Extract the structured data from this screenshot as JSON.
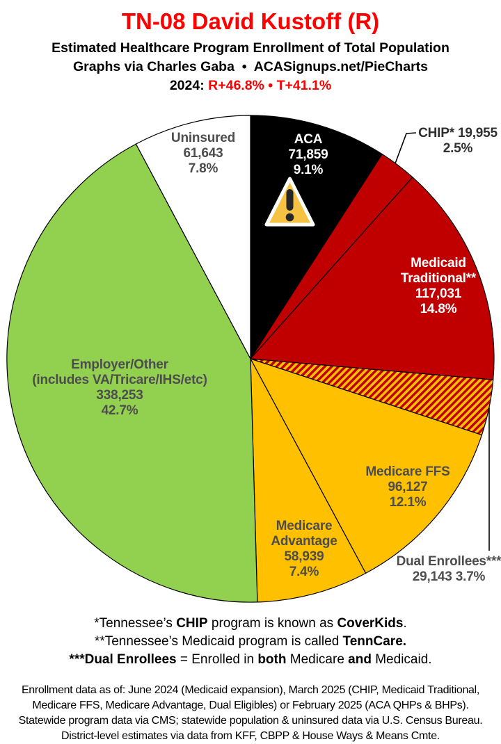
{
  "header": {
    "title": "TN-08 David Kustoff (R)",
    "subtitle": "Estimated Healthcare Program Enrollment of Total Population",
    "credit": "Graphs via Charles Gaba  •  ACASignups.net/PieCharts",
    "lean": {
      "year_label": "2024: ",
      "r": "R+46.8%",
      "sep": " • ",
      "t": "T+41.1%"
    },
    "accent_color": "#fe0000"
  },
  "chart_data": {
    "type": "pie",
    "title": "TN-08 David Kustoff (R) — Estimated Healthcare Program Enrollment of Total Population",
    "units": "people",
    "legend_position": "none",
    "start_angle_deg": 0,
    "direction": "clockwise",
    "hatch": {
      "base": "#ffc000",
      "stripe": "#c00000"
    },
    "slices": [
      {
        "id": "aca",
        "name": "ACA",
        "value": 71859,
        "pct": 9.1,
        "color": "#000000",
        "label_color": "#ffffff",
        "label_lines": [
          "ACA",
          "71,859",
          "9.1%"
        ]
      },
      {
        "id": "chip",
        "name": "CHIP*",
        "value": 19955,
        "pct": 2.5,
        "color": "#c00000",
        "label_color": "#303030",
        "label_outside": true,
        "label_lines": [
          "CHIP* 19,955",
          "2.5%"
        ]
      },
      {
        "id": "medicaid-traditional",
        "name": "Medicaid Traditional**",
        "value": 117031,
        "pct": 14.8,
        "color": "#c00000",
        "label_color": "#ffffff",
        "label_lines": [
          "Medicaid",
          "Traditional**",
          "117,031",
          "14.8%"
        ]
      },
      {
        "id": "dual-enrollees",
        "name": "Dual Enrollees***",
        "value": 29143,
        "pct": 3.7,
        "pattern": "red-yellow-hatch",
        "label_color": "#4d4d4d",
        "label_outside": true,
        "label_lines": [
          "Dual Enrollees***",
          "29,143 3.7%"
        ]
      },
      {
        "id": "medicare-ffs",
        "name": "Medicare FFS",
        "value": 96127,
        "pct": 12.1,
        "color": "#ffc000",
        "label_color": "#4d4d4d",
        "label_lines": [
          "Medicare FFS",
          "96,127",
          "12.1%"
        ]
      },
      {
        "id": "medicare-advantage",
        "name": "Medicare Advantage",
        "value": 58939,
        "pct": 7.4,
        "color": "#ffc000",
        "label_color": "#4d4d4d",
        "label_lines": [
          "Medicare",
          "Advantage",
          "58,939",
          "7.4%"
        ]
      },
      {
        "id": "employer-other",
        "name": "Employer/Other",
        "value": 338253,
        "pct": 42.7,
        "color": "#92d050",
        "label_color": "#4d4d4d",
        "label_lines": [
          "Employer/Other",
          "(includes VA/Tricare/IHS/etc)",
          "338,253",
          "42.7%"
        ]
      },
      {
        "id": "uninsured",
        "name": "Uninsured",
        "value": 61643,
        "pct": 7.8,
        "color": "#ffffff",
        "label_color": "#4d4d4d",
        "label_lines": [
          "Uninsured",
          "61,643",
          "7.8%"
        ]
      }
    ]
  },
  "icons": {
    "warning": {
      "name": "warning-icon",
      "glyph": "⚠",
      "fill": "#f5c243",
      "mark": "#262626"
    }
  },
  "footnotes": [
    {
      "segments": [
        {
          "text": "*Tennessee’s "
        },
        {
          "text": "CHIP",
          "bold": true
        },
        {
          "text": " program is known as "
        },
        {
          "text": "CoverKids",
          "bold": true
        },
        {
          "text": "."
        }
      ]
    },
    {
      "segments": [
        {
          "text": "**Tennessee’s Medicaid program is called "
        },
        {
          "text": "TennCare.",
          "bold": true
        }
      ]
    },
    {
      "segments": [
        {
          "text": "***Dual Enrollees",
          "bold": true
        },
        {
          "text": " = Enrolled in "
        },
        {
          "text": "both",
          "bold": true
        },
        {
          "text": " Medicare "
        },
        {
          "text": "and",
          "bold": true
        },
        {
          "text": " Medicaid."
        }
      ]
    }
  ],
  "source": {
    "lines": [
      "Enrollment data as of: June 2024 (Medicaid expansion), March 2025 (CHIP, Medicaid Traditional,",
      "Medicare FFS, Medicare Advantage, Dual Eligibles) or February 2025 (ACA QHPs & BHPs).",
      "Statewide program data via CMS; statewide population & uninsured data via U.S. Census Bureau.",
      "District-level estimates via data from KFF, CBPP & House Ways & Means Cmte."
    ]
  }
}
